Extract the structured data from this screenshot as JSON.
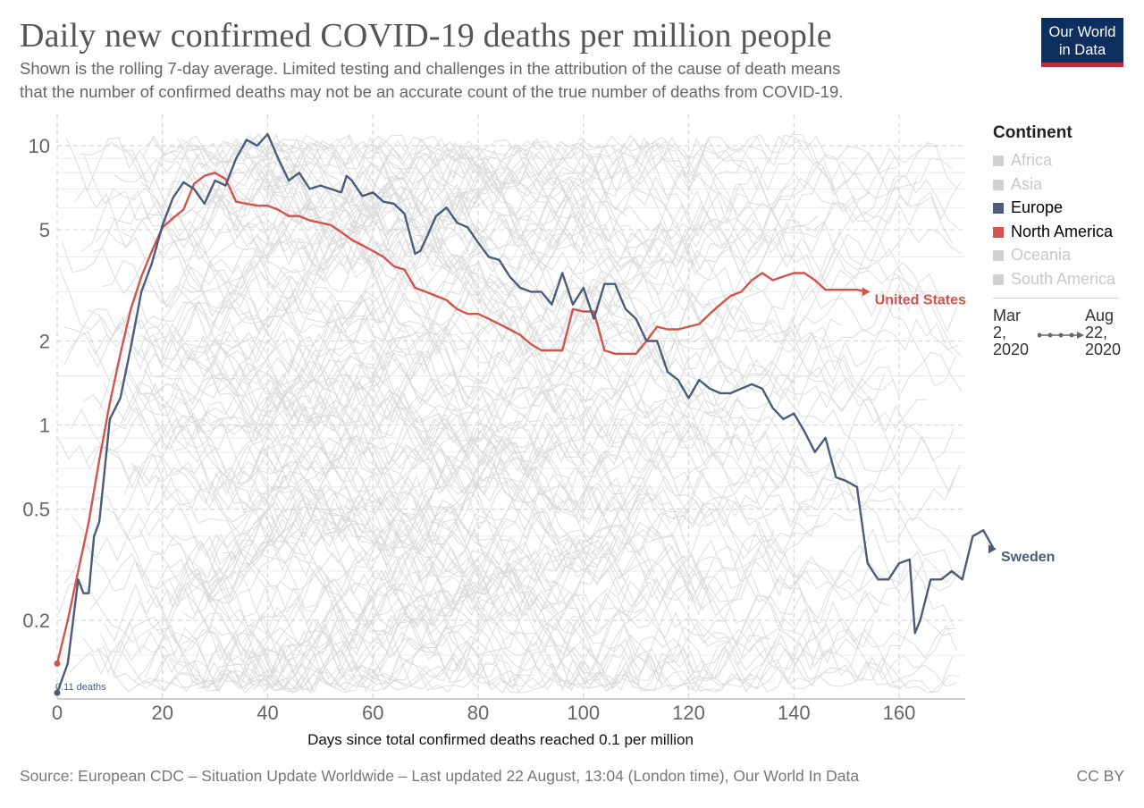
{
  "title": "Daily new confirmed COVID-19 deaths per million people",
  "subtitle_line1": "Shown is the rolling 7-day average. Limited testing and challenges in the attribution of the cause of death means",
  "subtitle_line2": "that the number of confirmed deaths may not be an accurate count of the true number of deaths from COVID-19.",
  "logo": {
    "line1": "Our World",
    "line2": "in Data"
  },
  "legend": {
    "title": "Continent",
    "items": [
      {
        "label": "Africa",
        "active": false,
        "color": "#d0d0d0"
      },
      {
        "label": "Asia",
        "active": false,
        "color": "#d0d0d0"
      },
      {
        "label": "Europe",
        "active": true,
        "color": "#4c5c78"
      },
      {
        "label": "North America",
        "active": true,
        "color": "#d2544c"
      },
      {
        "label": "Oceania",
        "active": false,
        "color": "#d0d0d0"
      },
      {
        "label": "South America",
        "active": false,
        "color": "#d0d0d0"
      }
    ]
  },
  "timeline": {
    "start": "Mar 2, 2020",
    "end": "Aug 22, 2020"
  },
  "source": "Source: European CDC – Situation Update Worldwide – Last updated 22 August, 13:04 (London time), Our World In Data",
  "license": "CC BY",
  "chart_data": {
    "type": "line",
    "title": "Daily new confirmed COVID-19 deaths per million people",
    "xlabel": "Days since total confirmed deaths reached 0.1 per million",
    "ylabel": "",
    "yscale": "log",
    "xlim": [
      0,
      170
    ],
    "ylim": [
      0.1,
      12
    ],
    "x_ticks": [
      0,
      20,
      40,
      60,
      80,
      100,
      120,
      140,
      160
    ],
    "y_ticks": [
      0.2,
      0.5,
      1,
      2,
      5,
      10
    ],
    "grid": true,
    "legend_position": "right",
    "start_annotation": "0.11 deaths",
    "series": [
      {
        "name": "United States",
        "color": "#d2544c",
        "points": [
          [
            0,
            0.14
          ],
          [
            2,
            0.2
          ],
          [
            4,
            0.3
          ],
          [
            6,
            0.45
          ],
          [
            8,
            0.75
          ],
          [
            10,
            1.2
          ],
          [
            12,
            1.8
          ],
          [
            14,
            2.6
          ],
          [
            16,
            3.4
          ],
          [
            18,
            4.2
          ],
          [
            20,
            5.1
          ],
          [
            22,
            5.5
          ],
          [
            24,
            5.9
          ],
          [
            26,
            7.3
          ],
          [
            28,
            7.8
          ],
          [
            30,
            8.0
          ],
          [
            32,
            7.6
          ],
          [
            34,
            6.3
          ],
          [
            36,
            6.2
          ],
          [
            38,
            6.1
          ],
          [
            40,
            6.1
          ],
          [
            42,
            5.9
          ],
          [
            44,
            5.6
          ],
          [
            46,
            5.6
          ],
          [
            48,
            5.4
          ],
          [
            50,
            5.3
          ],
          [
            52,
            5.2
          ],
          [
            54,
            4.9
          ],
          [
            56,
            4.6
          ],
          [
            58,
            4.4
          ],
          [
            60,
            4.2
          ],
          [
            62,
            4.0
          ],
          [
            64,
            3.7
          ],
          [
            66,
            3.6
          ],
          [
            68,
            3.1
          ],
          [
            70,
            3.0
          ],
          [
            72,
            2.9
          ],
          [
            74,
            2.8
          ],
          [
            76,
            2.6
          ],
          [
            78,
            2.5
          ],
          [
            80,
            2.5
          ],
          [
            82,
            2.4
          ],
          [
            84,
            2.3
          ],
          [
            86,
            2.2
          ],
          [
            88,
            2.1
          ],
          [
            90,
            1.95
          ],
          [
            92,
            1.85
          ],
          [
            94,
            1.85
          ],
          [
            96,
            1.85
          ],
          [
            98,
            2.6
          ],
          [
            100,
            2.55
          ],
          [
            102,
            2.55
          ],
          [
            104,
            1.85
          ],
          [
            106,
            1.8
          ],
          [
            108,
            1.8
          ],
          [
            110,
            1.8
          ],
          [
            112,
            2.0
          ],
          [
            114,
            2.25
          ],
          [
            116,
            2.2
          ],
          [
            118,
            2.2
          ],
          [
            120,
            2.25
          ],
          [
            122,
            2.3
          ],
          [
            124,
            2.5
          ],
          [
            126,
            2.7
          ],
          [
            128,
            2.9
          ],
          [
            130,
            3.0
          ],
          [
            132,
            3.3
          ],
          [
            134,
            3.5
          ],
          [
            136,
            3.3
          ],
          [
            138,
            3.4
          ],
          [
            140,
            3.5
          ],
          [
            142,
            3.5
          ],
          [
            144,
            3.3
          ],
          [
            146,
            3.05
          ],
          [
            148,
            3.05
          ],
          [
            150,
            3.05
          ],
          [
            152,
            3.05
          ],
          [
            154,
            3.0
          ]
        ]
      },
      {
        "name": "Sweden",
        "color": "#4c5c78",
        "points": [
          [
            0,
            0.11
          ],
          [
            2,
            0.14
          ],
          [
            4,
            0.28
          ],
          [
            5,
            0.25
          ],
          [
            6,
            0.25
          ],
          [
            7,
            0.4
          ],
          [
            8,
            0.45
          ],
          [
            10,
            1.05
          ],
          [
            12,
            1.25
          ],
          [
            14,
            1.9
          ],
          [
            16,
            3.0
          ],
          [
            18,
            3.8
          ],
          [
            20,
            5.2
          ],
          [
            22,
            6.5
          ],
          [
            24,
            7.4
          ],
          [
            26,
            7.0
          ],
          [
            28,
            6.2
          ],
          [
            30,
            7.5
          ],
          [
            32,
            7.2
          ],
          [
            34,
            9.0
          ],
          [
            36,
            10.5
          ],
          [
            38,
            10.0
          ],
          [
            40,
            11.0
          ],
          [
            42,
            9.0
          ],
          [
            44,
            7.5
          ],
          [
            46,
            8.0
          ],
          [
            48,
            7.0
          ],
          [
            50,
            7.2
          ],
          [
            52,
            7.0
          ],
          [
            54,
            6.8
          ],
          [
            55,
            7.8
          ],
          [
            56,
            7.5
          ],
          [
            58,
            6.6
          ],
          [
            60,
            6.8
          ],
          [
            62,
            6.3
          ],
          [
            64,
            6.2
          ],
          [
            66,
            5.7
          ],
          [
            68,
            4.1
          ],
          [
            69,
            4.2
          ],
          [
            70,
            4.6
          ],
          [
            72,
            5.6
          ],
          [
            74,
            6.0
          ],
          [
            76,
            5.3
          ],
          [
            78,
            5.1
          ],
          [
            80,
            4.5
          ],
          [
            82,
            4.0
          ],
          [
            84,
            3.9
          ],
          [
            86,
            3.4
          ],
          [
            88,
            3.1
          ],
          [
            90,
            3.0
          ],
          [
            92,
            3.0
          ],
          [
            94,
            2.7
          ],
          [
            96,
            3.5
          ],
          [
            98,
            2.7
          ],
          [
            100,
            3.1
          ],
          [
            102,
            2.4
          ],
          [
            104,
            3.2
          ],
          [
            106,
            3.2
          ],
          [
            108,
            2.6
          ],
          [
            110,
            2.4
          ],
          [
            112,
            2.0
          ],
          [
            114,
            2.0
          ],
          [
            116,
            1.55
          ],
          [
            118,
            1.45
          ],
          [
            120,
            1.25
          ],
          [
            122,
            1.45
          ],
          [
            124,
            1.35
          ],
          [
            126,
            1.3
          ],
          [
            128,
            1.3
          ],
          [
            130,
            1.35
          ],
          [
            132,
            1.4
          ],
          [
            134,
            1.35
          ],
          [
            136,
            1.15
          ],
          [
            138,
            1.05
          ],
          [
            140,
            1.1
          ],
          [
            142,
            0.95
          ],
          [
            144,
            0.8
          ],
          [
            146,
            0.9
          ],
          [
            148,
            0.65
          ],
          [
            150,
            0.63
          ],
          [
            152,
            0.6
          ],
          [
            154,
            0.32
          ],
          [
            156,
            0.28
          ],
          [
            158,
            0.28
          ],
          [
            160,
            0.32
          ],
          [
            162,
            0.33
          ],
          [
            163,
            0.18
          ],
          [
            164,
            0.2
          ],
          [
            166,
            0.28
          ],
          [
            168,
            0.28
          ],
          [
            170,
            0.3
          ],
          [
            172,
            0.28
          ],
          [
            174,
            0.4
          ],
          [
            176,
            0.42
          ],
          [
            178,
            0.36
          ]
        ]
      }
    ]
  }
}
